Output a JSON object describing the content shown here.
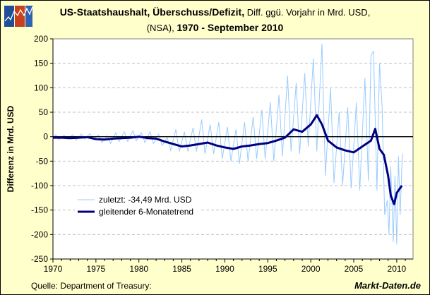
{
  "header": {
    "title_bold": "US-Staatshaushalt, Überschuss/Defizit,",
    "title_rest": " Diff. ggü. Vorjahr in Mrd. USD,",
    "subtitle_plain": "(NSA), ",
    "subtitle_bold": "1970 - September 2010"
  },
  "footer": {
    "source": "Quelle: Department of Treasury:",
    "brand": "Markt-Daten.de"
  },
  "logo": {
    "icon": "chart-logo-icon",
    "colors": [
      "#1F4E9A",
      "#C8401E",
      "#2F62B0"
    ]
  },
  "chart_data": {
    "type": "line",
    "title": "US-Staatshaushalt, Überschuss/Defizit, Diff. ggü. Vorjahr in Mrd. USD, (NSA), 1970 - September 2010",
    "ylabel": "Differenz in Mrd. USD",
    "xlabel": "",
    "xlim": [
      1970,
      2011.9
    ],
    "ylim": [
      -250,
      200
    ],
    "yticks": [
      200,
      150,
      100,
      50,
      0,
      -50,
      -100,
      -150,
      -200,
      -250
    ],
    "xticks": [
      1970,
      1975,
      1980,
      1985,
      1990,
      1995,
      2000,
      2005,
      2010
    ],
    "grid": "horizontal dashed",
    "legend_placement": "lower-left",
    "series": [
      {
        "name": "zuletzt: -34,49 Mrd. USD",
        "color": "#99CCFF",
        "points": [
          [
            1970.0,
            -3
          ],
          [
            1970.3,
            4
          ],
          [
            1970.7,
            -6
          ],
          [
            1971.3,
            3
          ],
          [
            1971.7,
            -5
          ],
          [
            1972.3,
            4
          ],
          [
            1972.7,
            -7
          ],
          [
            1973.3,
            5
          ],
          [
            1973.7,
            -5
          ],
          [
            1974.3,
            6
          ],
          [
            1974.7,
            -6
          ],
          [
            1975.3,
            3
          ],
          [
            1975.7,
            -12
          ],
          [
            1976.3,
            2
          ],
          [
            1976.7,
            -14
          ],
          [
            1977.3,
            8
          ],
          [
            1977.7,
            -10
          ],
          [
            1978.3,
            10
          ],
          [
            1978.7,
            -10
          ],
          [
            1979.3,
            12
          ],
          [
            1979.7,
            -8
          ],
          [
            1980.3,
            8
          ],
          [
            1980.7,
            -12
          ],
          [
            1981.3,
            10
          ],
          [
            1981.7,
            -14
          ],
          [
            1982.3,
            5
          ],
          [
            1982.7,
            -18
          ],
          [
            1983.3,
            -2
          ],
          [
            1983.7,
            -28
          ],
          [
            1984.3,
            15
          ],
          [
            1984.7,
            -30
          ],
          [
            1985.3,
            10
          ],
          [
            1985.7,
            -30
          ],
          [
            1986.3,
            18
          ],
          [
            1986.7,
            -30
          ],
          [
            1987.3,
            35
          ],
          [
            1987.7,
            -35
          ],
          [
            1988.3,
            25
          ],
          [
            1988.7,
            -35
          ],
          [
            1989.3,
            30
          ],
          [
            1989.7,
            -45
          ],
          [
            1990.3,
            20
          ],
          [
            1990.7,
            -50
          ],
          [
            1991.3,
            15
          ],
          [
            1991.7,
            -55
          ],
          [
            1992.3,
            30
          ],
          [
            1992.7,
            -50
          ],
          [
            1993.3,
            40
          ],
          [
            1993.7,
            -45
          ],
          [
            1994.3,
            55
          ],
          [
            1994.7,
            -45
          ],
          [
            1995.3,
            70
          ],
          [
            1995.7,
            -50
          ],
          [
            1996.3,
            85
          ],
          [
            1996.7,
            -40
          ],
          [
            1997.3,
            125
          ],
          [
            1997.7,
            -30
          ],
          [
            1998.3,
            110
          ],
          [
            1998.7,
            -35
          ],
          [
            1999.3,
            130
          ],
          [
            1999.7,
            -20
          ],
          [
            2000.3,
            160
          ],
          [
            2000.7,
            -30
          ],
          [
            2001.3,
            190
          ],
          [
            2001.7,
            -80
          ],
          [
            2002.3,
            100
          ],
          [
            2002.7,
            -95
          ],
          [
            2003.3,
            50
          ],
          [
            2003.7,
            -100
          ],
          [
            2004.3,
            60
          ],
          [
            2004.7,
            -105
          ],
          [
            2005.3,
            70
          ],
          [
            2005.7,
            -110
          ],
          [
            2006.3,
            120
          ],
          [
            2006.7,
            -90
          ],
          [
            2007.0,
            165
          ],
          [
            2007.3,
            175
          ],
          [
            2007.7,
            -110
          ],
          [
            2008.0,
            150
          ],
          [
            2008.3,
            60
          ],
          [
            2008.6,
            -160
          ],
          [
            2008.9,
            -130
          ],
          [
            2009.1,
            -200
          ],
          [
            2009.3,
            -60
          ],
          [
            2009.6,
            -215
          ],
          [
            2009.8,
            -80
          ],
          [
            2010.0,
            -220
          ],
          [
            2010.2,
            -40
          ],
          [
            2010.4,
            -160
          ],
          [
            2010.6,
            -60
          ],
          [
            2010.7,
            -34.49
          ]
        ]
      },
      {
        "name": "gleitender 6-Monatetrend",
        "color": "#000080",
        "points": [
          [
            1970.0,
            -2
          ],
          [
            1971.0,
            -2
          ],
          [
            1972.0,
            -3
          ],
          [
            1973.0,
            -2
          ],
          [
            1974.0,
            -1
          ],
          [
            1975.0,
            -5
          ],
          [
            1976.0,
            -6
          ],
          [
            1977.0,
            -4
          ],
          [
            1978.0,
            -3
          ],
          [
            1979.0,
            -2
          ],
          [
            1980.0,
            0
          ],
          [
            1981.0,
            -3
          ],
          [
            1982.0,
            -4
          ],
          [
            1983.0,
            -10
          ],
          [
            1984.0,
            -15
          ],
          [
            1985.0,
            -20
          ],
          [
            1986.0,
            -18
          ],
          [
            1987.0,
            -15
          ],
          [
            1988.0,
            -12
          ],
          [
            1989.0,
            -18
          ],
          [
            1990.0,
            -22
          ],
          [
            1991.0,
            -25
          ],
          [
            1992.0,
            -20
          ],
          [
            1993.0,
            -18
          ],
          [
            1994.0,
            -15
          ],
          [
            1995.0,
            -13
          ],
          [
            1996.0,
            -8
          ],
          [
            1997.0,
            -2
          ],
          [
            1998.0,
            15
          ],
          [
            1999.0,
            10
          ],
          [
            2000.0,
            25
          ],
          [
            2000.7,
            44
          ],
          [
            2001.3,
            25
          ],
          [
            2002.0,
            -8
          ],
          [
            2003.0,
            -22
          ],
          [
            2004.0,
            -28
          ],
          [
            2005.0,
            -32
          ],
          [
            2006.0,
            -20
          ],
          [
            2007.0,
            -8
          ],
          [
            2007.5,
            16
          ],
          [
            2008.0,
            -25
          ],
          [
            2008.5,
            -37
          ],
          [
            2009.0,
            -80
          ],
          [
            2009.3,
            -120
          ],
          [
            2009.7,
            -138
          ],
          [
            2010.0,
            -115
          ],
          [
            2010.6,
            -100
          ]
        ]
      }
    ]
  }
}
